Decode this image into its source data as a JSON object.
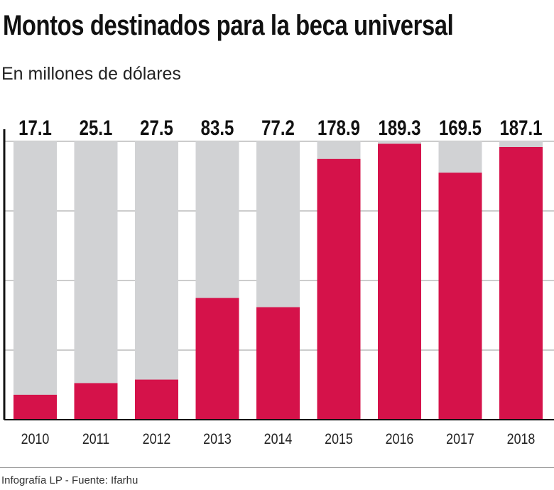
{
  "chart_data": {
    "type": "bar",
    "title": "Montos destinados para la beca universal",
    "subtitle": "En millones de dólares",
    "categories": [
      "2010",
      "2011",
      "2012",
      "2013",
      "2014",
      "2015",
      "2016",
      "2017",
      "2018"
    ],
    "values": [
      17.1,
      25.1,
      27.5,
      83.5,
      77.2,
      178.9,
      189.3,
      169.5,
      187.1
    ],
    "value_labels": [
      "17.1",
      "25.1",
      "27.5",
      "83.5",
      "77.2",
      "178.9",
      "189.3",
      "169.5",
      "187.1"
    ],
    "ylim": [
      0,
      191
    ],
    "grid": true,
    "colors": {
      "bar": "#d5124a",
      "background_bar": "#d1d2d4",
      "grid": "#999999",
      "axis": "#111111"
    }
  },
  "footer": "Infografía LP  - Fuente: Ifarhu"
}
